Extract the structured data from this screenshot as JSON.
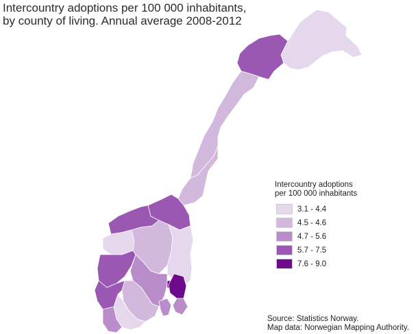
{
  "title": {
    "line1": "Intercountry adoptions per 100 000 inhabitants,",
    "line2": "by county of living. Annual average 2008-2012"
  },
  "legend": {
    "title_line1": "Intercountry adoptions",
    "title_line2": "per 100 000 inhabitants",
    "classes": [
      {
        "label": "3.1 - 4.4",
        "color": "#e6d8ec"
      },
      {
        "label": "4.5 - 4.6",
        "color": "#d2b8dc"
      },
      {
        "label": "4.7 - 5.6",
        "color": "#b98dc9"
      },
      {
        "label": "5.7 - 7.5",
        "color": "#9a58b2"
      },
      {
        "label": "7.6 - 9.0",
        "color": "#6e0a8c"
      }
    ]
  },
  "source": {
    "line1": "Source: Statistics Norway.",
    "line2": "Map data: Norwegian Mapping Authority."
  },
  "map": {
    "counties": [
      {
        "name": "Finnmark",
        "class": 0
      },
      {
        "name": "Troms",
        "class": 3
      },
      {
        "name": "Nordland",
        "class": 1
      },
      {
        "name": "Nord-Trøndelag",
        "class": 1
      },
      {
        "name": "Sør-Trøndelag",
        "class": 3
      },
      {
        "name": "Møre og Romsdal",
        "class": 3
      },
      {
        "name": "Sogn og Fjordane",
        "class": 0
      },
      {
        "name": "Oppland",
        "class": 1
      },
      {
        "name": "Hedmark",
        "class": 0
      },
      {
        "name": "Hordaland",
        "class": 3
      },
      {
        "name": "Buskerud",
        "class": 2
      },
      {
        "name": "Oslo",
        "class": 4
      },
      {
        "name": "Akershus",
        "class": 4
      },
      {
        "name": "Østfold",
        "class": 2
      },
      {
        "name": "Vestfold",
        "class": 2
      },
      {
        "name": "Telemark",
        "class": 1
      },
      {
        "name": "Aust-Agder",
        "class": 0
      },
      {
        "name": "Vest-Agder",
        "class": 2
      },
      {
        "name": "Rogaland",
        "class": 3
      }
    ]
  }
}
